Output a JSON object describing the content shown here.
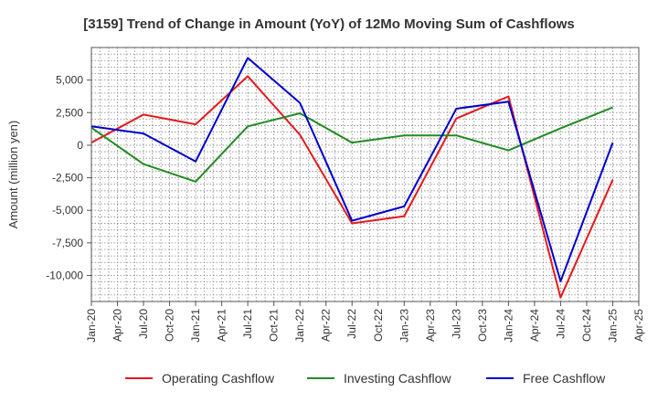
{
  "chart_data": {
    "type": "line",
    "title": "[3159]  Trend of Change in Amount (YoY) of 12Mo Moving Sum of Cashflows",
    "xlabel": "",
    "ylabel": "Amount (million yen)",
    "ylim": [
      -12000,
      7500
    ],
    "yticks": [
      5000,
      2500,
      0,
      -2500,
      -5000,
      -7500,
      -10000
    ],
    "ytick_labels": [
      "5,000",
      "2,500",
      "0",
      "-2,500",
      "-5,000",
      "-7,500",
      "-10,000"
    ],
    "x_tick_labels": [
      "Jan-20",
      "Apr-20",
      "Jul-20",
      "Oct-20",
      "Jan-21",
      "Apr-21",
      "Jul-21",
      "Oct-21",
      "Jan-22",
      "Apr-22",
      "Jul-22",
      "Oct-22",
      "Jan-23",
      "Apr-23",
      "Jul-23",
      "Oct-23",
      "Jan-24",
      "Apr-24",
      "Jul-24",
      "Oct-24",
      "Jan-25",
      "Apr-25"
    ],
    "grid": true,
    "legend_position": "bottom",
    "series": [
      {
        "name": "Operating Cashflow",
        "color": "#e41a1c",
        "x_index": [
          0,
          2,
          4,
          6,
          8,
          10,
          12,
          14,
          16,
          18,
          20
        ],
        "values": [
          200,
          2350,
          1600,
          5300,
          800,
          -6000,
          -5450,
          2050,
          3750,
          -11700,
          -2650
        ]
      },
      {
        "name": "Investing Cashflow",
        "color": "#228b22",
        "x_index": [
          0,
          2,
          4,
          6,
          8,
          10,
          12,
          14,
          16,
          18,
          20
        ],
        "values": [
          1350,
          -1450,
          -2800,
          1450,
          2450,
          200,
          750,
          750,
          -400,
          1300,
          2900
        ]
      },
      {
        "name": "Free Cashflow",
        "color": "#0000cd",
        "x_index": [
          0,
          2,
          4,
          6,
          8,
          10,
          12,
          14,
          16,
          18,
          20
        ],
        "values": [
          1450,
          900,
          -1250,
          6700,
          3250,
          -5800,
          -4700,
          2800,
          3350,
          -10450,
          200
        ]
      }
    ]
  }
}
